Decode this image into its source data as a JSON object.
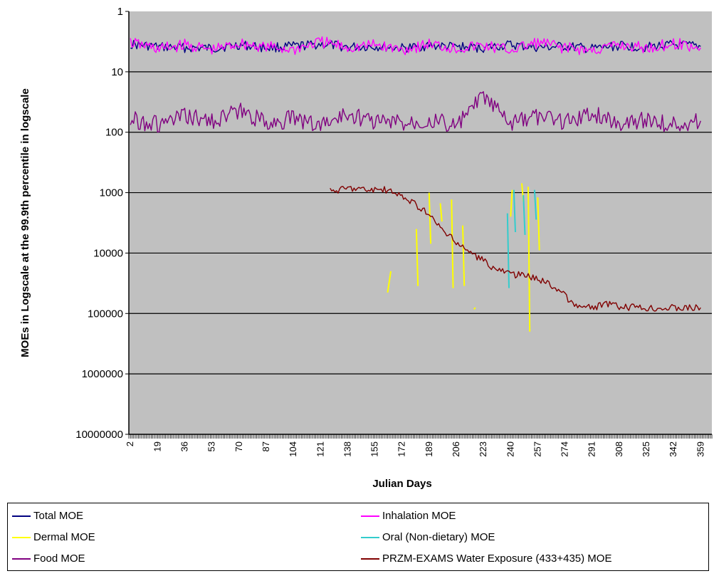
{
  "chart_data": {
    "type": "line",
    "ylabel": "MOEs in Logscale at the 99.9th percentile in logscale",
    "xlabel": "Julian Days",
    "y_scale": "log",
    "y_reversed": true,
    "ylim": [
      1,
      10000000
    ],
    "y_ticks": [
      "1",
      "10",
      "100",
      "1000",
      "10000",
      "100000",
      "1000000",
      "10000000"
    ],
    "x_ticks": [
      "2",
      "19",
      "36",
      "53",
      "70",
      "87",
      "104",
      "121",
      "138",
      "155",
      "172",
      "189",
      "206",
      "223",
      "240",
      "257",
      "274",
      "291",
      "308",
      "325",
      "342",
      "359"
    ],
    "xlim": [
      1,
      366
    ],
    "grid": "horizontal",
    "plot_background": "#c0c0c0",
    "legend_position": "bottom",
    "series": [
      {
        "name": "Total MOE",
        "color": "#000080",
        "points": [
          [
            2,
            3.5
          ],
          [
            20,
            3.9
          ],
          [
            36,
            4.0
          ],
          [
            53,
            4.1
          ],
          [
            70,
            3.6
          ],
          [
            87,
            4.0
          ],
          [
            104,
            3.8
          ],
          [
            121,
            3.5
          ],
          [
            138,
            3.9
          ],
          [
            155,
            3.8
          ],
          [
            172,
            4.1
          ],
          [
            189,
            3.7
          ],
          [
            206,
            3.9
          ],
          [
            223,
            4.0
          ],
          [
            240,
            3.6
          ],
          [
            257,
            4.0
          ],
          [
            274,
            3.8
          ],
          [
            291,
            4.2
          ],
          [
            308,
            3.7
          ],
          [
            325,
            3.9
          ],
          [
            342,
            3.6
          ],
          [
            359,
            3.8
          ]
        ]
      },
      {
        "name": "Inhalation MOE",
        "color": "#ff00ff",
        "points": [
          [
            2,
            3.3
          ],
          [
            20,
            4.2
          ],
          [
            36,
            3.6
          ],
          [
            53,
            4.4
          ],
          [
            70,
            3.4
          ],
          [
            87,
            3.9
          ],
          [
            104,
            4.3
          ],
          [
            121,
            3.2
          ],
          [
            138,
            4.0
          ],
          [
            155,
            3.6
          ],
          [
            172,
            4.3
          ],
          [
            189,
            3.5
          ],
          [
            206,
            4.1
          ],
          [
            223,
            3.7
          ],
          [
            240,
            4.4
          ],
          [
            257,
            3.3
          ],
          [
            274,
            4.0
          ],
          [
            291,
            4.5
          ],
          [
            308,
            3.6
          ],
          [
            325,
            4.1
          ],
          [
            342,
            3.4
          ],
          [
            359,
            4.0
          ]
        ]
      },
      {
        "name": "Dermal MOE",
        "color": "#ffff00",
        "segments": [
          [
            [
              163,
              45000
            ],
            [
              165,
              20000
            ]
          ],
          [
            [
              181,
              4000
            ],
            [
              182,
              35000
            ]
          ],
          [
            [
              189,
              1000
            ],
            [
              190,
              7000
            ]
          ],
          [
            [
              196,
              1500
            ],
            [
              197,
              3000
            ]
          ],
          [
            [
              203,
              1300
            ],
            [
              204,
              38000
            ]
          ],
          [
            [
              210,
              3500
            ],
            [
              211,
              35000
            ]
          ],
          [
            [
              217,
              85000
            ],
            [
              218,
              80000
            ]
          ],
          [
            [
              240,
              2500
            ],
            [
              241,
              900
            ]
          ],
          [
            [
              247,
              700
            ],
            [
              248,
              1400
            ]
          ],
          [
            [
              251,
              800
            ],
            [
              252,
              200000
            ]
          ],
          [
            [
              257,
              1200
            ],
            [
              258,
              9000
            ]
          ]
        ]
      },
      {
        "name": "Oral (Non-dietary) MOE",
        "color": "#33cccc",
        "segments": [
          [
            [
              238,
              2200
            ],
            [
              239,
              38000
            ]
          ],
          [
            [
              242,
              900
            ],
            [
              243,
              4500
            ]
          ],
          [
            [
              248,
              1100
            ],
            [
              249,
              5000
            ]
          ],
          [
            [
              255,
              900
            ],
            [
              256,
              2800
            ]
          ]
        ]
      },
      {
        "name": "Food MOE",
        "color": "#800080",
        "points": [
          [
            2,
            60
          ],
          [
            20,
            75
          ],
          [
            36,
            55
          ],
          [
            53,
            65
          ],
          [
            70,
            45
          ],
          [
            87,
            70
          ],
          [
            104,
            60
          ],
          [
            121,
            75
          ],
          [
            138,
            50
          ],
          [
            155,
            65
          ],
          [
            172,
            70
          ],
          [
            189,
            60
          ],
          [
            206,
            80
          ],
          [
            223,
            25
          ],
          [
            240,
            75
          ],
          [
            257,
            55
          ],
          [
            274,
            65
          ],
          [
            291,
            50
          ],
          [
            308,
            70
          ],
          [
            325,
            60
          ],
          [
            342,
            75
          ],
          [
            359,
            65
          ]
        ]
      },
      {
        "name": "PRZM-EXAMS Water Exposure (433+435) MOE",
        "color": "#800000",
        "points": [
          [
            127,
            950
          ],
          [
            140,
            830
          ],
          [
            150,
            900
          ],
          [
            160,
            880
          ],
          [
            170,
            1100
          ],
          [
            180,
            1500
          ],
          [
            190,
            2500
          ],
          [
            200,
            5000
          ],
          [
            210,
            8000
          ],
          [
            220,
            12000
          ],
          [
            230,
            18000
          ],
          [
            240,
            22000
          ],
          [
            250,
            24000
          ],
          [
            260,
            28000
          ],
          [
            270,
            40000
          ],
          [
            280,
            75000
          ],
          [
            290,
            80000
          ],
          [
            300,
            70000
          ],
          [
            310,
            80000
          ],
          [
            320,
            80000
          ],
          [
            340,
            80000
          ],
          [
            359,
            80000
          ]
        ]
      }
    ]
  },
  "legend": {
    "items": [
      {
        "label": "Total MOE",
        "color": "#000080"
      },
      {
        "label": "Inhalation MOE",
        "color": "#ff00ff"
      },
      {
        "label": "Dermal MOE",
        "color": "#ffff00"
      },
      {
        "label": "Oral (Non-dietary) MOE",
        "color": "#33cccc"
      },
      {
        "label": "Food MOE",
        "color": "#800080"
      },
      {
        "label": "PRZM-EXAMS Water Exposure (433+435) MOE",
        "color": "#800000"
      }
    ]
  }
}
